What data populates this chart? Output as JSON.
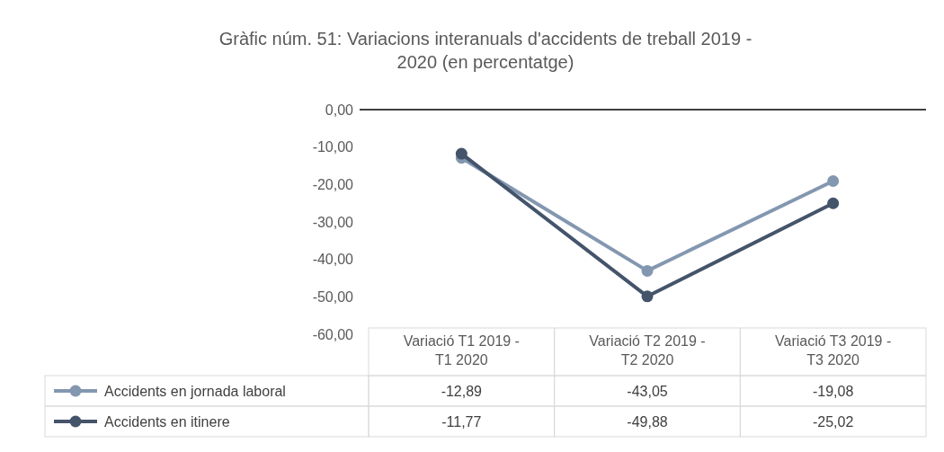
{
  "chart_data": {
    "type": "line",
    "title": "Gràfic núm. 51: Variacions interanuals d'accidents de treball 2019 - 2020 (en percentatge)",
    "categories": [
      "Variació T1 2019 - T1 2020",
      "Variació T2 2019 - T2 2020",
      "Variació T3 2019 - T3 2020"
    ],
    "series": [
      {
        "name": "Accidents en jornada laboral",
        "color": "#8497b0",
        "values": [
          -12.89,
          -43.05,
          -19.08
        ],
        "value_labels": [
          "-12,89",
          "-43,05",
          "-19,08"
        ]
      },
      {
        "name": "Accidents en itinere",
        "color": "#44546a",
        "values": [
          -11.77,
          -49.88,
          -25.02
        ],
        "value_labels": [
          "-11,77",
          "-49,88",
          "-25,02"
        ]
      }
    ],
    "ylim": [
      -60,
      0
    ],
    "yticks": [
      {
        "value": 0,
        "label": "0,00"
      },
      {
        "value": -10,
        "label": "-10,00"
      },
      {
        "value": -20,
        "label": "-20,00"
      },
      {
        "value": -30,
        "label": "-30,00"
      },
      {
        "value": -40,
        "label": "-40,00"
      },
      {
        "value": -50,
        "label": "-50,00"
      },
      {
        "value": -60,
        "label": "-60,00"
      }
    ],
    "grid": false,
    "legend": "bottom",
    "marker": "circle",
    "line_style": "solid"
  }
}
